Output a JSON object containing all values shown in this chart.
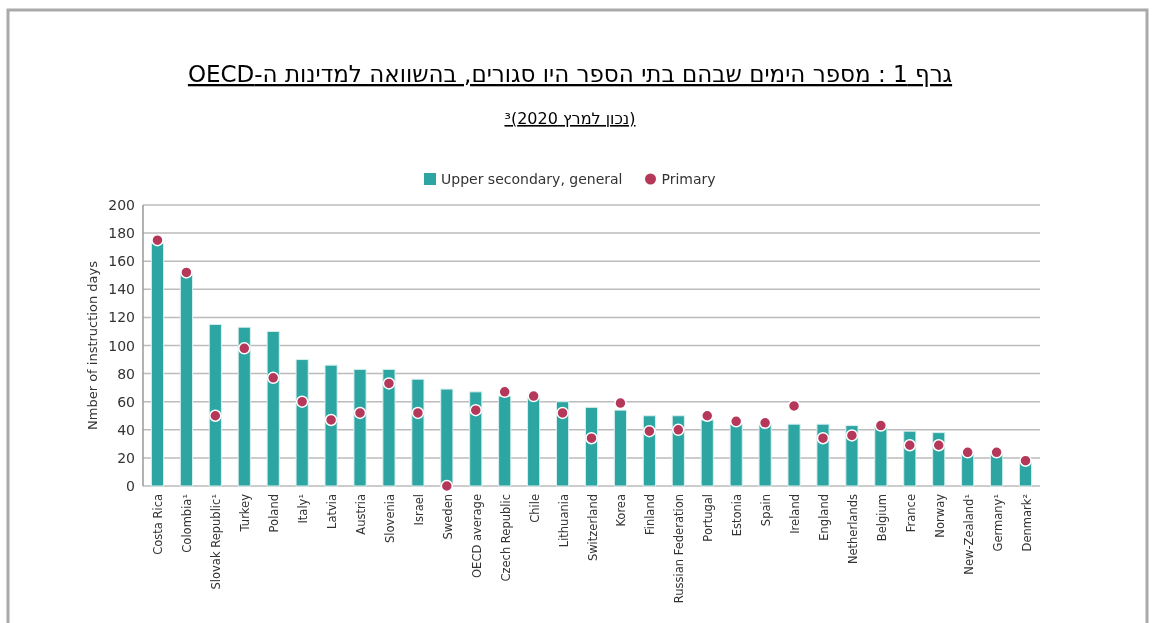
{
  "chart_data": {
    "type": "bar",
    "title": "גרף 1 : מספר הימים שבהם בתי הספר היו סגורים, בהשוואה למדינות ה-OECD",
    "subtitle": "(נכון למרץ 2020)³",
    "ylabel": "Nmber of instruction days",
    "categories": [
      "Costa Rica",
      "Colombia¹",
      "Slovak Republic¹",
      "Turkey",
      "Poland",
      "Italy¹",
      "Latvia",
      "Austria",
      "Slovenia",
      "Israel",
      "Sweden",
      "OECD average",
      "Czech Republic",
      "Chile",
      "Lithuania",
      "Switzerland",
      "Korea",
      "Finland",
      "Russian Federation",
      "Portugal",
      "Estonia",
      "Spain",
      "Ireland",
      "England",
      "Netherlands",
      "Belgium",
      "France",
      "Norway",
      "New-Zealand¹",
      "Germany¹",
      "Denmark²"
    ],
    "series": [
      {
        "name": "Upper secondary, general",
        "color": "#2ca5a3",
        "values": [
          173,
          151,
          115,
          113,
          110,
          90,
          86,
          83,
          83,
          76,
          69,
          67,
          64,
          63,
          60,
          56,
          54,
          50,
          50,
          47,
          44,
          44,
          44,
          44,
          43,
          42,
          39,
          38,
          23,
          23,
          17
        ]
      },
      {
        "name": "Primary",
        "type": "scatter",
        "color": "#b5385a",
        "values": [
          175,
          152,
          50,
          98,
          77,
          60,
          47,
          52,
          73,
          52,
          0,
          54,
          67,
          64,
          52,
          34,
          59,
          39,
          40,
          50,
          46,
          45,
          57,
          34,
          36,
          43,
          29,
          29,
          24,
          24,
          18
        ]
      }
    ],
    "ylim": [
      0,
      200
    ],
    "yticks": [
      0,
      20,
      40,
      60,
      80,
      100,
      120,
      140,
      160,
      180,
      200
    ],
    "grid": "y",
    "legend": "top",
    "marker": "circle"
  }
}
